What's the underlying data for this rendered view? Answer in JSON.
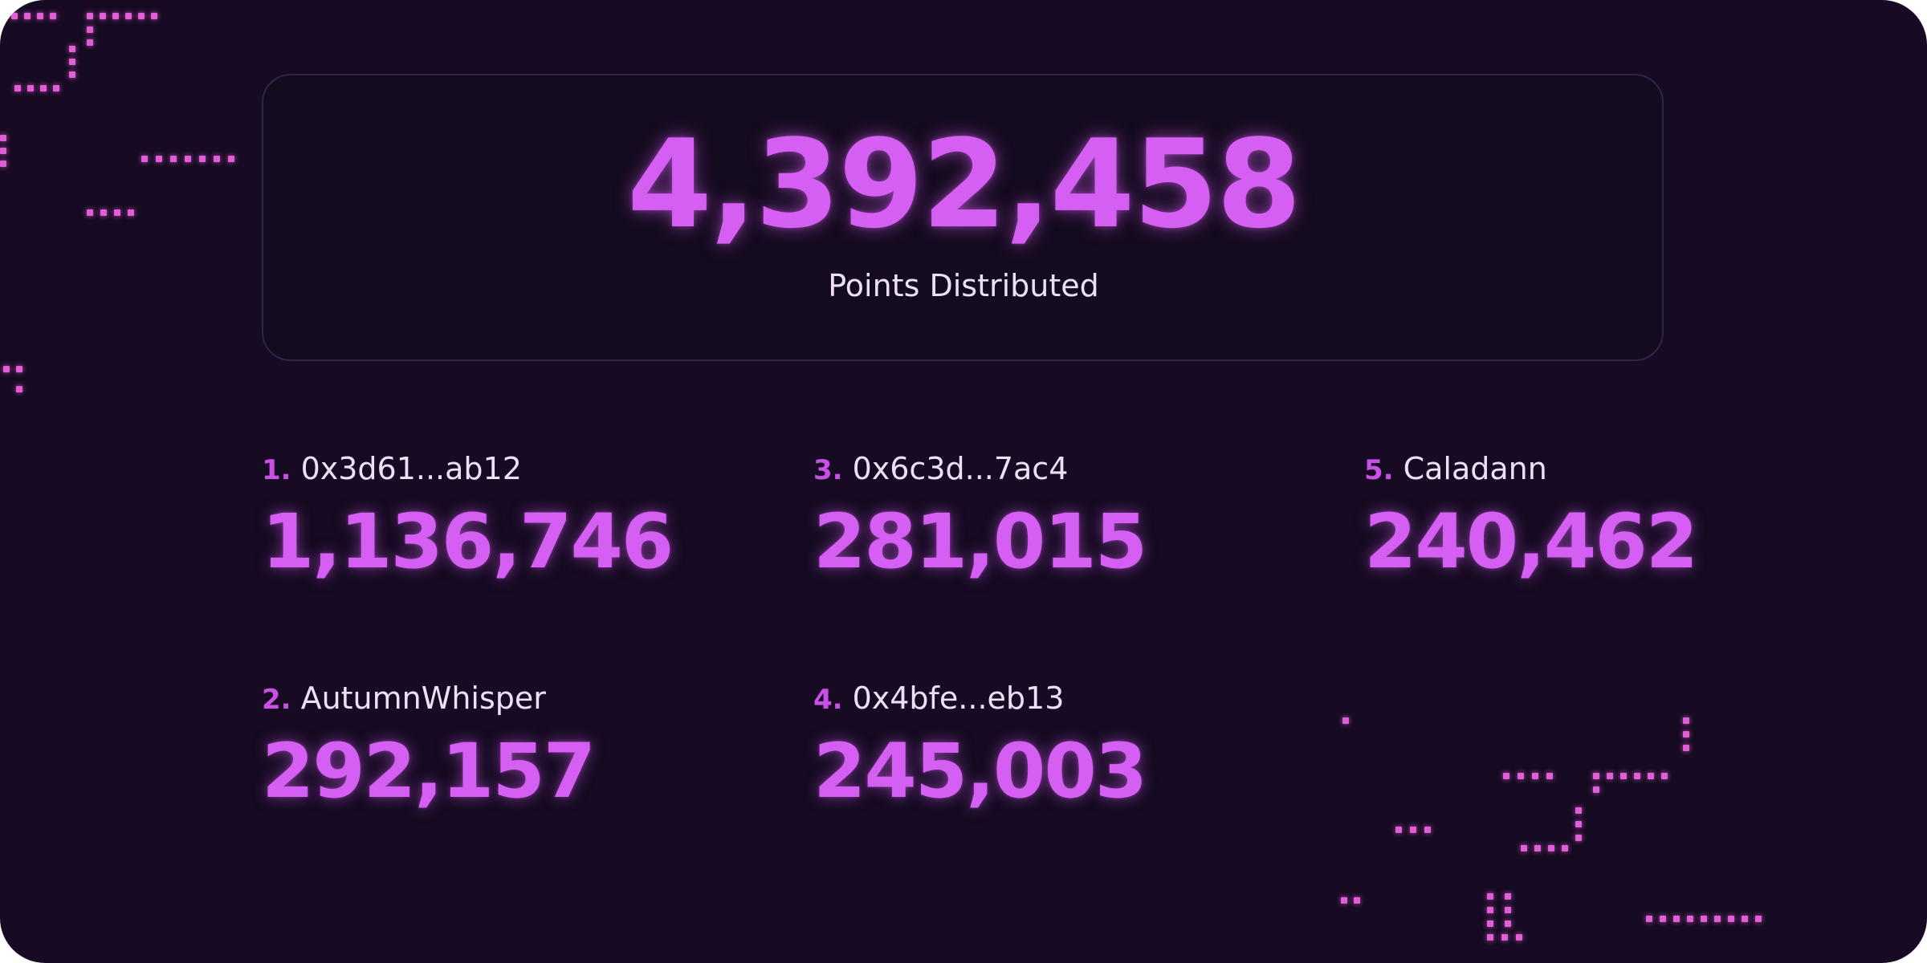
{
  "summary": {
    "total_points": "4,392,458",
    "total_label": "Points Distributed"
  },
  "leaderboard": [
    {
      "rank": "1.",
      "name": "0x3d61...ab12",
      "points": "1,136,746"
    },
    {
      "rank": "2.",
      "name": "AutumnWhisper",
      "points": "292,157"
    },
    {
      "rank": "3.",
      "name": "0x6c3d...7ac4",
      "points": "281,015"
    },
    {
      "rank": "4.",
      "name": "0x4bfe...eb13",
      "points": "245,003"
    },
    {
      "rank": "5.",
      "name": "Caladann",
      "points": "240,462"
    }
  ],
  "colors": {
    "background": "#160b22",
    "accent": "#d55ff2",
    "rank": "#c94fe6",
    "text": "#ecdff6",
    "decor_dots": "#e05fd6"
  }
}
